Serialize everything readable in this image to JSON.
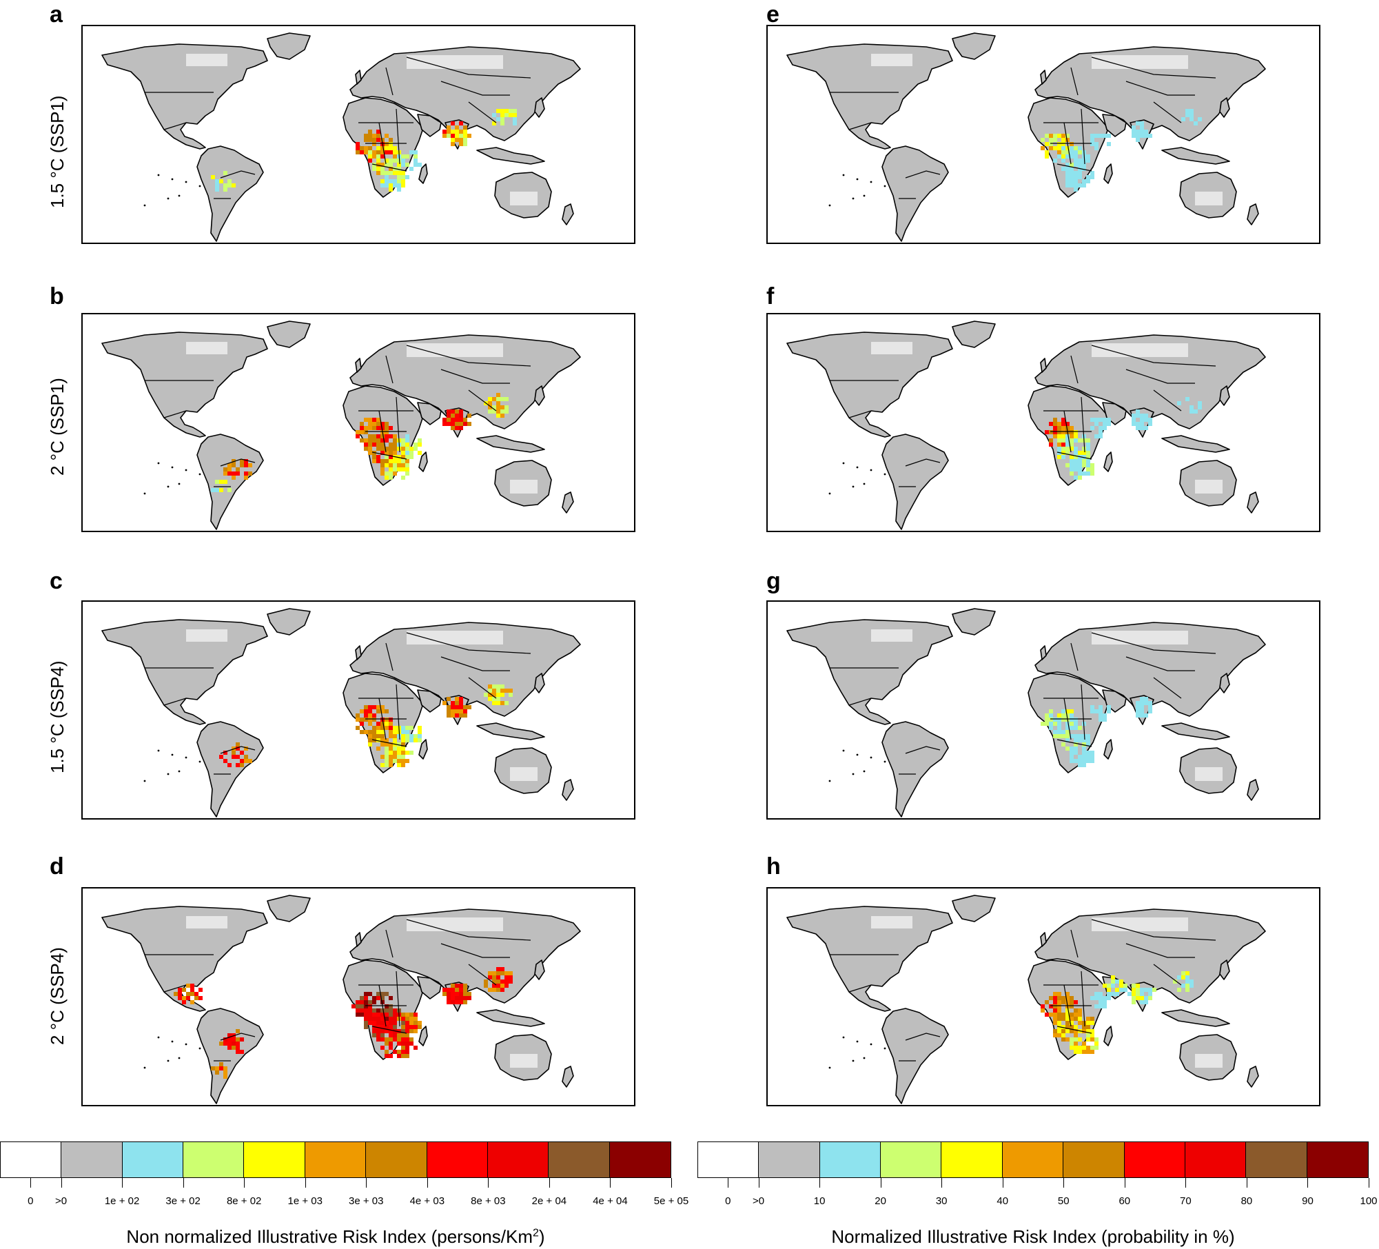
{
  "panels": [
    {
      "letter": "a",
      "row_label": "1.5 °C (SSP1)",
      "scale": "non_normalized"
    },
    {
      "letter": "b",
      "row_label": "2 °C (SSP1)",
      "scale": "non_normalized"
    },
    {
      "letter": "c",
      "row_label": "1.5 °C (SSP4)",
      "scale": "non_normalized"
    },
    {
      "letter": "d",
      "row_label": "2 °C (SSP4)",
      "scale": "non_normalized"
    },
    {
      "letter": "e",
      "scale": "normalized"
    },
    {
      "letter": "f",
      "scale": "normalized"
    },
    {
      "letter": "g",
      "scale": "normalized"
    },
    {
      "letter": "h",
      "scale": "normalized"
    }
  ],
  "legend_colors": [
    "#ffffff",
    "#bebebe",
    "#8ee3ee",
    "#cdff70",
    "#ffff00",
    "#ee9a00",
    "#cd8500",
    "#ff0000",
    "#ee0000",
    "#8b5a2b",
    "#8b0000"
  ],
  "land_color": "#bebebe",
  "colorbars": {
    "left": {
      "title": "Non normalized Illustrative Risk Index (persons/Km",
      "title_sup": "2",
      "title_end": ")",
      "tick_labels": [
        "0",
        ">0",
        "1e + 02",
        "3e + 02",
        "8e + 02",
        "1e + 03",
        "3e + 03",
        "4e + 03",
        "8e + 03",
        "2e + 04",
        "4e + 04",
        "5e + 05"
      ]
    },
    "right": {
      "title": "Normalized Illustrative Risk Index (probability in %)",
      "tick_labels": [
        "0",
        ">0",
        "10",
        "20",
        "30",
        "40",
        "50",
        "60",
        "70",
        "80",
        "90",
        "100"
      ]
    }
  }
}
